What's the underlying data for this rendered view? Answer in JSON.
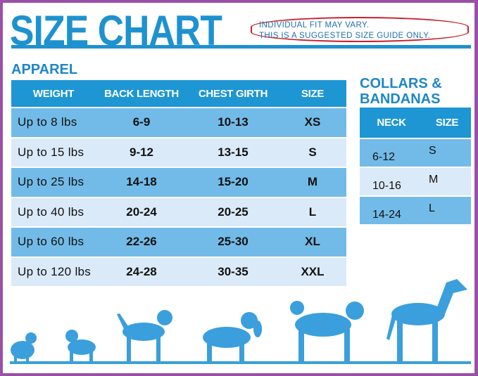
{
  "title": "SIZE CHART",
  "note": [
    "INDIVIDUAL FIT MAY VARY.",
    "THIS IS A SUGGESTED SIZE GUIDE ONLY."
  ],
  "apparel": {
    "heading": "APPAREL",
    "columns": [
      "WEIGHT",
      "BACK LENGTH",
      "CHEST GIRTH",
      "SIZE"
    ],
    "rows": [
      [
        "Up to 8 lbs",
        "6-9",
        "10-13",
        "XS"
      ],
      [
        "Up to 15 lbs",
        "9-12",
        "13-15",
        "S"
      ],
      [
        "Up to 25 lbs",
        "14-18",
        "15-20",
        "M"
      ],
      [
        "Up to 40 lbs",
        "20-24",
        "20-25",
        "L"
      ],
      [
        "Up to 60 lbs",
        "22-26",
        "25-30",
        "XL"
      ],
      [
        "Up to 120 lbs",
        "24-28",
        "30-35",
        "XXL"
      ]
    ]
  },
  "collars": {
    "heading": [
      "COLLARS &",
      "BANDANAS"
    ],
    "columns": [
      "NECK",
      "SIZE"
    ],
    "rows": [
      [
        "6-12",
        "S"
      ],
      [
        "10-16",
        "M"
      ],
      [
        "14-24",
        "L"
      ]
    ]
  },
  "colors": {
    "brand_blue": "#1e92cf",
    "row_dark": "#72bbe8",
    "row_light": "#dbeaf8",
    "border": "#9b50a8",
    "note_outline": "#c8202a"
  },
  "illustration": "dog-silhouettes"
}
